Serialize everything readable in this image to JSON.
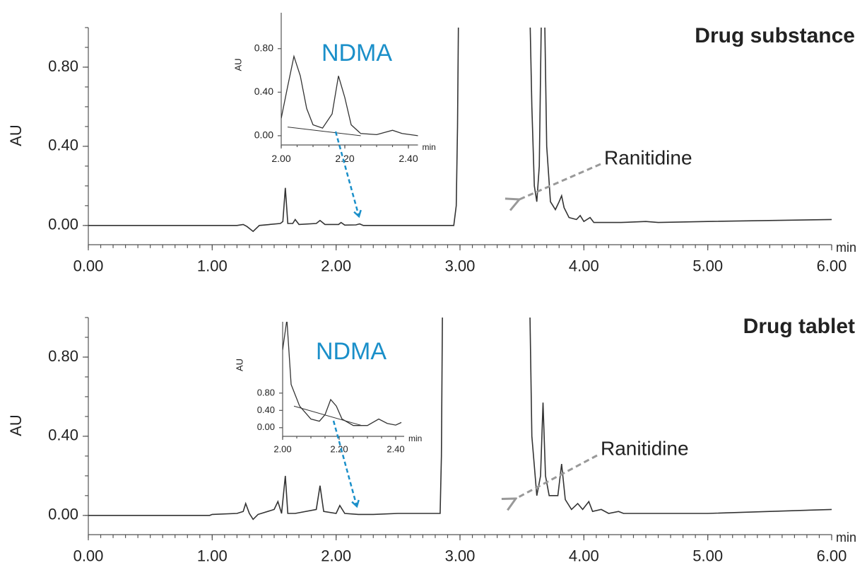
{
  "chart_data": [
    {
      "type": "line",
      "title": "Drug substance",
      "xlabel": "min",
      "ylabel": "AU",
      "annotation": "Ranitidine",
      "color": "#333333",
      "xlim": [
        0,
        6
      ],
      "ylim": [
        -0.09,
        1.0
      ],
      "xticks": [
        {
          "value": 0,
          "label": "0.00"
        },
        {
          "value": 1,
          "label": "1.00"
        },
        {
          "value": 2,
          "label": "2.00"
        },
        {
          "value": 3,
          "label": "3.00"
        },
        {
          "value": 4,
          "label": "4.00"
        },
        {
          "value": 5,
          "label": "5.00"
        },
        {
          "value": 6,
          "label": "6.00"
        }
      ],
      "yticks": [
        {
          "value": 0,
          "label": "0.00"
        },
        {
          "value": 0.4,
          "label": "0.40"
        },
        {
          "value": 0.8,
          "label": "0.80"
        }
      ],
      "x": [
        0,
        1.2,
        1.25,
        1.28,
        1.33,
        1.38,
        1.55,
        1.57,
        1.59,
        1.61,
        1.65,
        1.67,
        1.7,
        1.84,
        1.87,
        1.91,
        2.02,
        2.04,
        2.07,
        2.16,
        2.19,
        2.22,
        2.95,
        2.97,
        2.98,
        2.99,
        3.56,
        3.58,
        3.6,
        3.62,
        3.64,
        3.66,
        3.68,
        3.7,
        3.73,
        3.77,
        3.8,
        3.82,
        3.84,
        3.88,
        3.94,
        3.97,
        4.0,
        4.05,
        4.08,
        4.3,
        4.5,
        4.6,
        5,
        6
      ],
      "values": [
        0,
        0,
        0.005,
        -0.005,
        -0.03,
        0,
        0.01,
        0.02,
        0.19,
        0.01,
        0.01,
        0.03,
        0.005,
        0.01,
        0.025,
        0.005,
        0.005,
        0.015,
        0.002,
        0.003,
        0.008,
        0,
        0,
        0.1,
        0.5,
        1.2,
        1.2,
        0.6,
        0.2,
        0.12,
        0.3,
        1.2,
        1.2,
        0.4,
        0.12,
        0.08,
        0.12,
        0.15,
        0.09,
        0.04,
        0.03,
        0.05,
        0.02,
        0.04,
        0.015,
        0.015,
        0.02,
        0.015,
        0.02,
        0.03
      ]
    },
    {
      "type": "line",
      "xlabel": "min",
      "ylabel": "AU",
      "annotation": "NDMA",
      "color": "#333333",
      "xlim": [
        2.0,
        2.43
      ],
      "ylim": [
        -0.085,
        1.13
      ],
      "xticks": [
        {
          "value": 2.0,
          "label": "2.00"
        },
        {
          "value": 2.2,
          "label": "2.20"
        },
        {
          "value": 2.4,
          "label": "2.40"
        }
      ],
      "yticks": [
        {
          "value": 0,
          "label": "0.00"
        },
        {
          "value": 0.4,
          "label": "0.40"
        },
        {
          "value": 0.8,
          "label": "0.80"
        }
      ],
      "x": [
        2.0,
        2.02,
        2.04,
        2.06,
        2.08,
        2.1,
        2.13,
        2.16,
        2.18,
        2.2,
        2.22,
        2.25,
        2.3,
        2.35,
        2.38,
        2.43
      ],
      "values": [
        0.16,
        0.45,
        0.73,
        0.55,
        0.25,
        0.1,
        0.07,
        0.2,
        0.55,
        0.35,
        0.1,
        0.02,
        0.01,
        0.05,
        0.02,
        0
      ]
    },
    {
      "type": "line",
      "title": "Drug tablet",
      "xlabel": "min",
      "ylabel": "AU",
      "annotation": "Ranitidine",
      "color": "#333333",
      "xlim": [
        0,
        6
      ],
      "ylim": [
        -0.09,
        1.0
      ],
      "xticks": [
        {
          "value": 0,
          "label": "0.00"
        },
        {
          "value": 1,
          "label": "1.00"
        },
        {
          "value": 2,
          "label": "2.00"
        },
        {
          "value": 3,
          "label": "3.00"
        },
        {
          "value": 4,
          "label": "4.00"
        },
        {
          "value": 5,
          "label": "5.00"
        },
        {
          "value": 6,
          "label": "6.00"
        }
      ],
      "yticks": [
        {
          "value": 0,
          "label": "0.00"
        },
        {
          "value": 0.4,
          "label": "0.40"
        },
        {
          "value": 0.8,
          "label": "0.80"
        }
      ],
      "x": [
        0,
        0.98,
        1.0,
        1.2,
        1.25,
        1.27,
        1.3,
        1.33,
        1.37,
        1.5,
        1.53,
        1.56,
        1.59,
        1.61,
        1.67,
        1.84,
        1.87,
        1.9,
        2.0,
        2.03,
        2.07,
        2.18,
        2.3,
        2.5,
        2.84,
        2.85,
        2.86,
        3.56,
        3.58,
        3.62,
        3.65,
        3.67,
        3.69,
        3.72,
        3.79,
        3.82,
        3.85,
        3.9,
        3.95,
        3.99,
        4.04,
        4.07,
        4.14,
        4.2,
        4.28,
        4.32,
        4.5,
        5,
        6
      ],
      "values": [
        0,
        0,
        0.005,
        0.01,
        0.02,
        0.06,
        0.01,
        -0.02,
        0.005,
        0.03,
        0.07,
        0.01,
        0.2,
        0.01,
        0.01,
        0.03,
        0.15,
        0.02,
        0.01,
        0.05,
        0.01,
        0.005,
        0.005,
        0.01,
        0.01,
        0.3,
        1.2,
        1.2,
        0.4,
        0.1,
        0.2,
        0.57,
        0.2,
        0.1,
        0.1,
        0.26,
        0.08,
        0.03,
        0.06,
        0.03,
        0.07,
        0.02,
        0.03,
        0.01,
        0.02,
        0.01,
        0.01,
        0.01,
        0.03
      ]
    },
    {
      "type": "line",
      "xlabel": "min",
      "ylabel": "AU",
      "annotation": "NDMA",
      "color": "#333333",
      "xlim": [
        2.0,
        2.43
      ],
      "ylim": [
        -0.2,
        2.45
      ],
      "xticks": [
        {
          "value": 2.0,
          "label": "2.00"
        },
        {
          "value": 2.2,
          "label": "2.20"
        },
        {
          "value": 2.4,
          "label": "2.40"
        }
      ],
      "yticks": [
        {
          "value": 0,
          "label": "0.00"
        },
        {
          "value": 0.4,
          "label": "0.40"
        },
        {
          "value": 0.8,
          "label": "0.80"
        }
      ],
      "x": [
        2.0,
        2.015,
        2.03,
        2.06,
        2.1,
        2.13,
        2.15,
        2.17,
        2.19,
        2.21,
        2.25,
        2.3,
        2.34,
        2.37,
        2.4,
        2.42
      ],
      "values": [
        1.8,
        2.5,
        1.0,
        0.5,
        0.2,
        0.15,
        0.3,
        0.65,
        0.5,
        0.2,
        0.05,
        0.05,
        0.2,
        0.1,
        0.06,
        0.12
      ]
    }
  ]
}
